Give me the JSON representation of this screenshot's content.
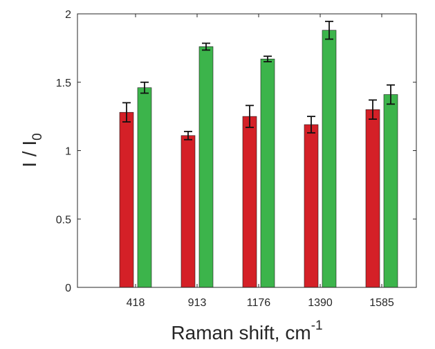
{
  "chart_data": {
    "type": "bar",
    "xlabel": "Raman shift, cm",
    "xlabel_superscript": "-1",
    "ylabel": "I / I",
    "ylabel_subscript": "0",
    "categories": [
      "418",
      "913",
      "1176",
      "1390",
      "1585"
    ],
    "ylim": [
      0,
      2
    ],
    "yticks": [
      "0",
      "0.5",
      "1",
      "1.5",
      "2"
    ],
    "grid": false,
    "series": [
      {
        "color": "#d42027",
        "values": [
          1.28,
          1.11,
          1.25,
          1.19,
          1.3
        ],
        "errors": [
          0.07,
          0.03,
          0.08,
          0.06,
          0.07
        ]
      },
      {
        "color": "#3cb44b",
        "values": [
          1.46,
          1.76,
          1.67,
          1.88,
          1.41
        ],
        "errors": [
          0.04,
          0.025,
          0.02,
          0.065,
          0.07
        ]
      }
    ]
  }
}
